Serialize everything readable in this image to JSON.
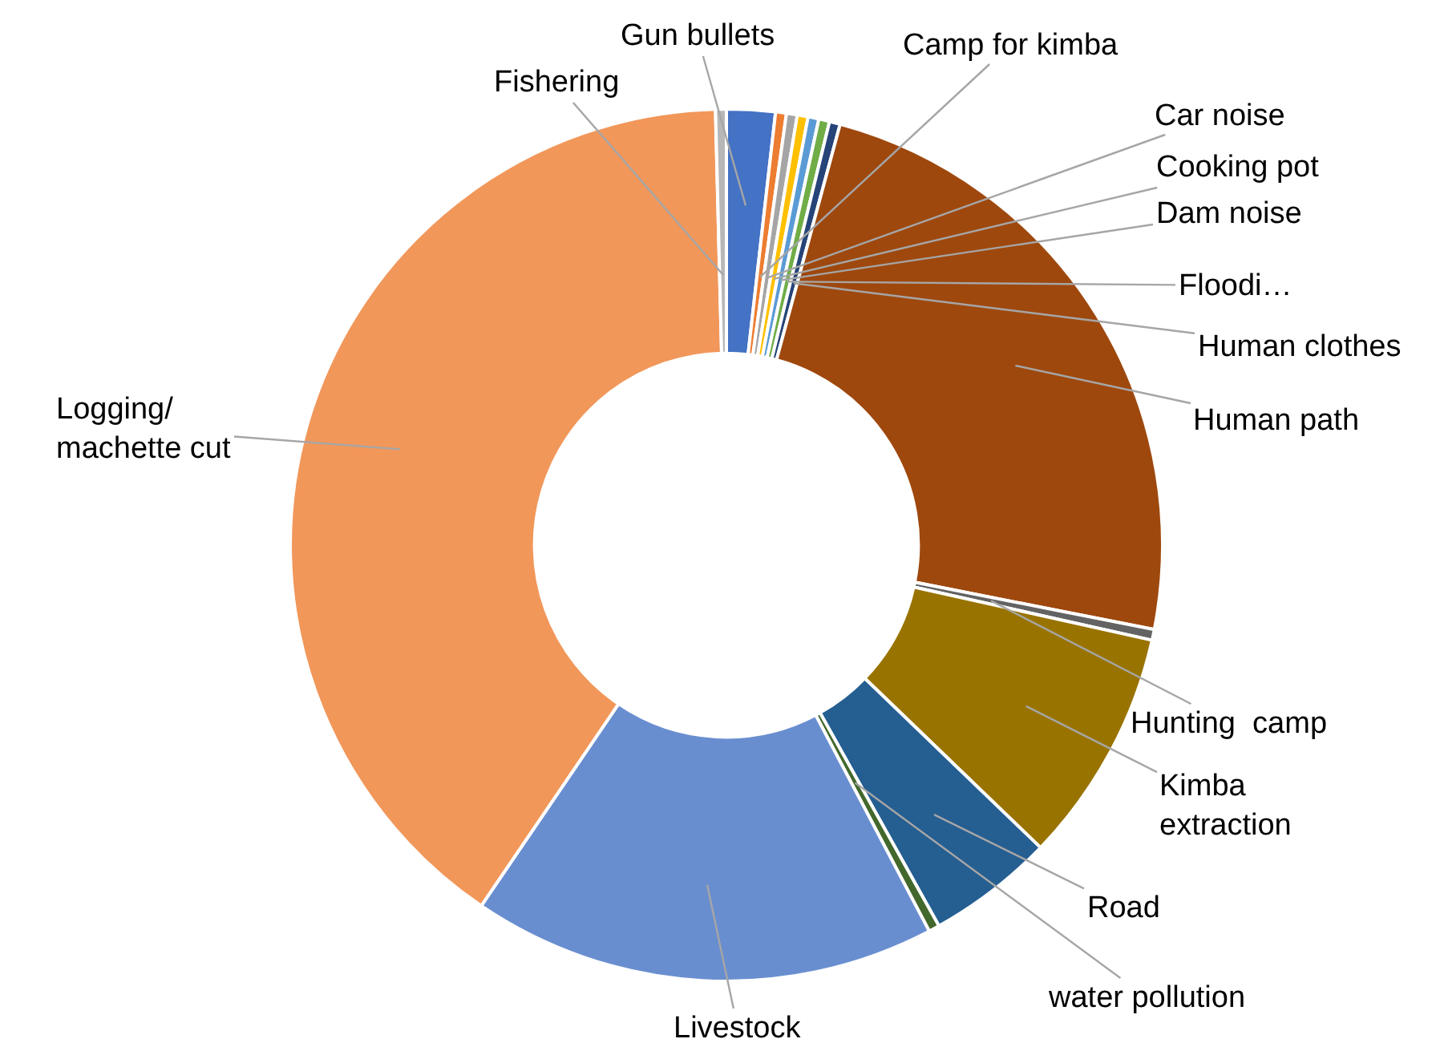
{
  "chart_data": {
    "type": "donut",
    "categories": [
      "Gun bullets",
      "Camp for kimba",
      "Car noise",
      "Cooking pot",
      "Dam noise",
      "Floodi…",
      "Human clothes",
      "Human path",
      "Hunting  camp",
      "Kimba\nextraction",
      "Road",
      "water pollution",
      "Livestock",
      "Logging/\nmachette cut",
      "Fishering"
    ],
    "values": [
      1.8,
      0.4,
      0.4,
      0.4,
      0.4,
      0.4,
      0.4,
      23.9,
      0.4,
      8.7,
      4.7,
      0.4,
      17.2,
      40.1,
      0.4
    ],
    "colors": [
      "#4472c4",
      "#ed7d31",
      "#a5a5a5",
      "#ffc000",
      "#5b9bd5",
      "#70ad47",
      "#264478",
      "#9e480e",
      "#636363",
      "#997300",
      "#255e91",
      "#43682b",
      "#698ed0",
      "#f1975a",
      "#b7b7b7"
    ]
  }
}
